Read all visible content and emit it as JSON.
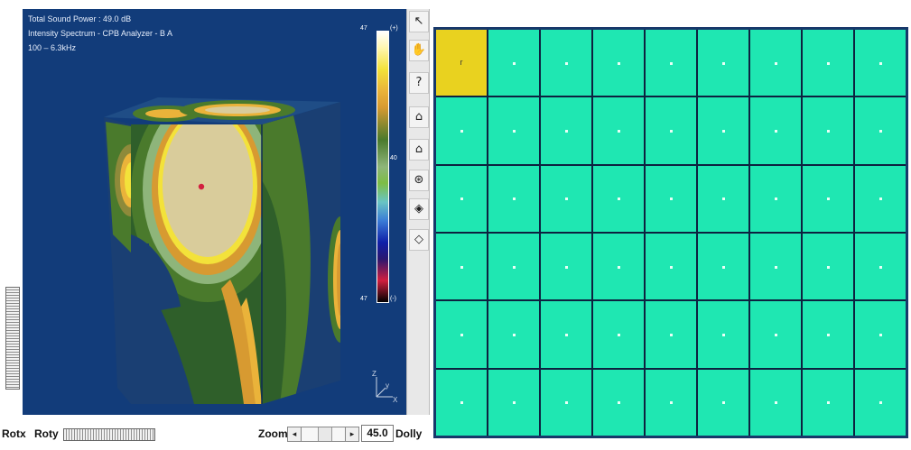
{
  "viewer": {
    "info_lines": [
      "Total Sound Power : 49.0 dB",
      "Intensity Spectrum - CPB Analyzer - B A",
      "100 – 6.3kHz"
    ],
    "colorbar": {
      "top_label": "47",
      "top_unit": "(+)",
      "mid_label": "40",
      "bottom_label": "47",
      "bottom_unit": "(-)"
    },
    "axes": {
      "z": "Z",
      "y": "y",
      "x": "X"
    }
  },
  "toolbar": {
    "items": [
      {
        "name": "pointer-arrow-icon",
        "glyph": "↖"
      },
      {
        "name": "hand-pan-icon",
        "glyph": "✋"
      },
      {
        "name": "help-icon",
        "glyph": "?"
      },
      {
        "name": "home-view-icon",
        "glyph": "⌂"
      },
      {
        "name": "home-view-alt-icon",
        "glyph": "⌂"
      },
      {
        "name": "seek-icon",
        "glyph": "⊛"
      },
      {
        "name": "navigate-icon",
        "glyph": "◈"
      },
      {
        "name": "perspective-box-icon",
        "glyph": "◇"
      }
    ]
  },
  "bottom_bar": {
    "rotx_label": "Rotx",
    "roty_label": "Roty",
    "zoom_label": "Zoom",
    "zoom_left": "◂",
    "zoom_right": "▸",
    "zoom_value": "45.0",
    "dolly_label": "Dolly"
  },
  "grid": {
    "rows": 6,
    "cols": 9,
    "selected_index": 0,
    "selected_mark": "r",
    "cell_color": "#1fe7b2",
    "selected_color": "#e9d21f"
  }
}
